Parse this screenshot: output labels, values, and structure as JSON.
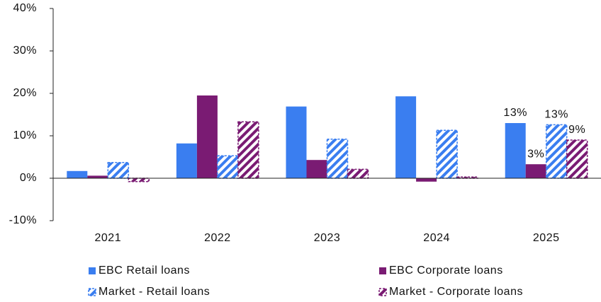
{
  "chart_data": {
    "type": "bar",
    "categories": [
      "2021",
      "2022",
      "2023",
      "2024",
      "2025"
    ],
    "series": [
      {
        "name": "EBC Retail loans",
        "color": "#3a7ef0",
        "hatch": false,
        "values": [
          1.7,
          8.2,
          16.9,
          19.3,
          13
        ],
        "value_labels": [
          null,
          null,
          null,
          null,
          "13%"
        ]
      },
      {
        "name": "EBC Corporate loans",
        "color": "#7a1b73",
        "hatch": false,
        "values": [
          0.6,
          19.5,
          4.3,
          -0.8,
          3.3
        ],
        "value_labels": [
          null,
          null,
          null,
          null,
          "3%"
        ]
      },
      {
        "name": "Market - Retail loans",
        "color": "#3a7ef0",
        "hatch": true,
        "values": [
          3.7,
          5.3,
          9.2,
          11.3,
          12.6
        ],
        "value_labels": [
          null,
          null,
          null,
          null,
          "13%"
        ]
      },
      {
        "name": "Market - Corporate loans",
        "color": "#7a1b73",
        "hatch": true,
        "values": [
          -0.8,
          13.3,
          2.1,
          0.3,
          9
        ],
        "value_labels": [
          null,
          null,
          null,
          null,
          "9%"
        ]
      }
    ],
    "ylim": [
      -10,
      40
    ],
    "yticks": [
      {
        "value": -10,
        "label": "-10%"
      },
      {
        "value": 0,
        "label": "0%"
      },
      {
        "value": 10,
        "label": "10%"
      },
      {
        "value": 20,
        "label": "20%"
      },
      {
        "value": 30,
        "label": "30%"
      },
      {
        "value": 40,
        "label": "40%"
      }
    ],
    "grid": false
  }
}
